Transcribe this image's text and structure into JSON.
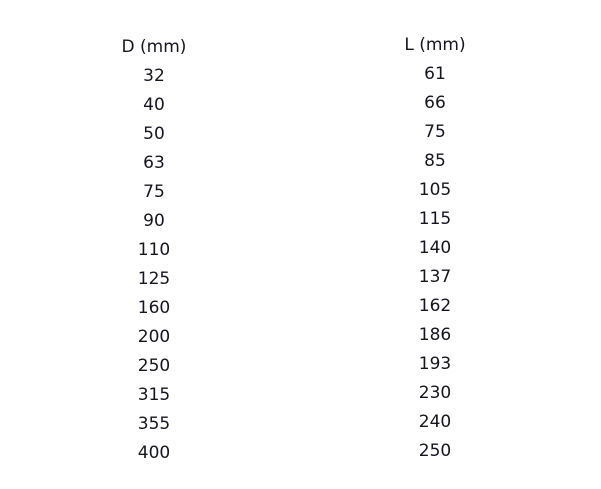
{
  "table": {
    "headers": [
      "D (mm)",
      "L (mm)"
    ],
    "d_values": [
      "32",
      "40",
      "50",
      "63",
      "75",
      "90",
      "110",
      "125",
      "160",
      "200",
      "250",
      "315",
      "355",
      "400"
    ],
    "l_values": [
      "61",
      "66",
      "75",
      "85",
      "105",
      "115",
      "140",
      "137",
      "162",
      "186",
      "193",
      "230",
      "240",
      "250"
    ]
  }
}
